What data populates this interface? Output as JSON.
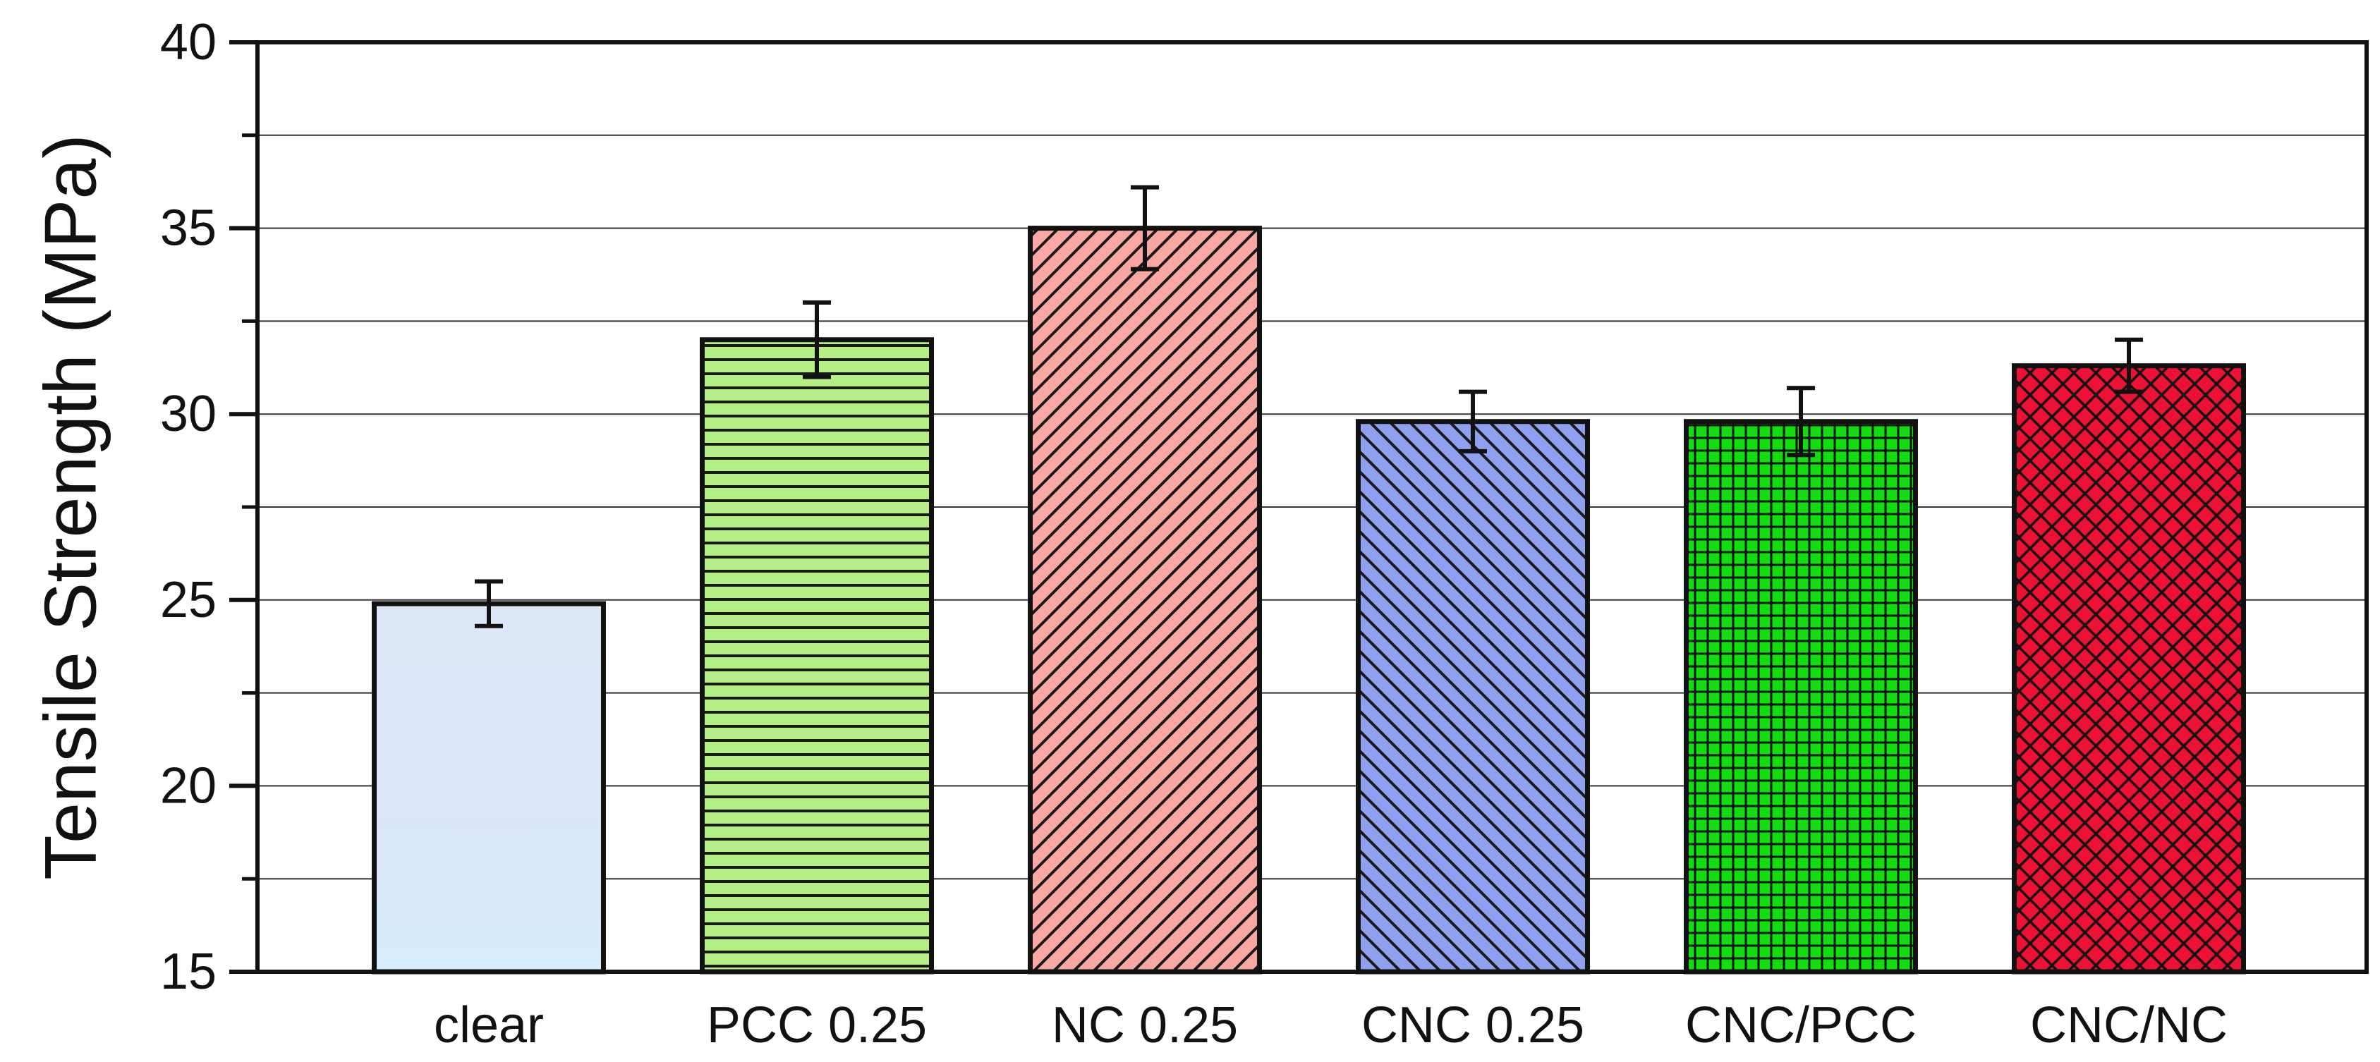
{
  "chart_data": {
    "type": "bar",
    "title": "",
    "xlabel": "",
    "ylabel": "Tensile Strength (MPa)",
    "ylim": [
      15,
      40
    ],
    "yticks": [
      15,
      20,
      25,
      30,
      35,
      40
    ],
    "yminor": [
      17.5,
      22.5,
      27.5,
      32.5,
      37.5
    ],
    "gridlines": [
      17.5,
      20,
      22.5,
      25,
      27.5,
      30,
      32.5,
      35,
      37.5
    ],
    "grid": true,
    "categories": [
      "clear",
      "PCC 0.25",
      "NC 0.25",
      "CNC 0.25",
      "CNC/PCC",
      "CNC/NC"
    ],
    "values": [
      24.9,
      32.0,
      35.0,
      29.8,
      29.8,
      31.3
    ],
    "errors": [
      0.6,
      1.0,
      1.1,
      0.8,
      0.9,
      0.7
    ],
    "colors": [
      "#dbeafb",
      "#b6ef86",
      "#f8a7a2",
      "#8fa0f1",
      "#11dd11",
      "#ee1133"
    ],
    "patterns": [
      "gradient",
      "horizontal",
      "diagonal-back",
      "diagonal-forward",
      "grid",
      "crosshatch"
    ]
  }
}
